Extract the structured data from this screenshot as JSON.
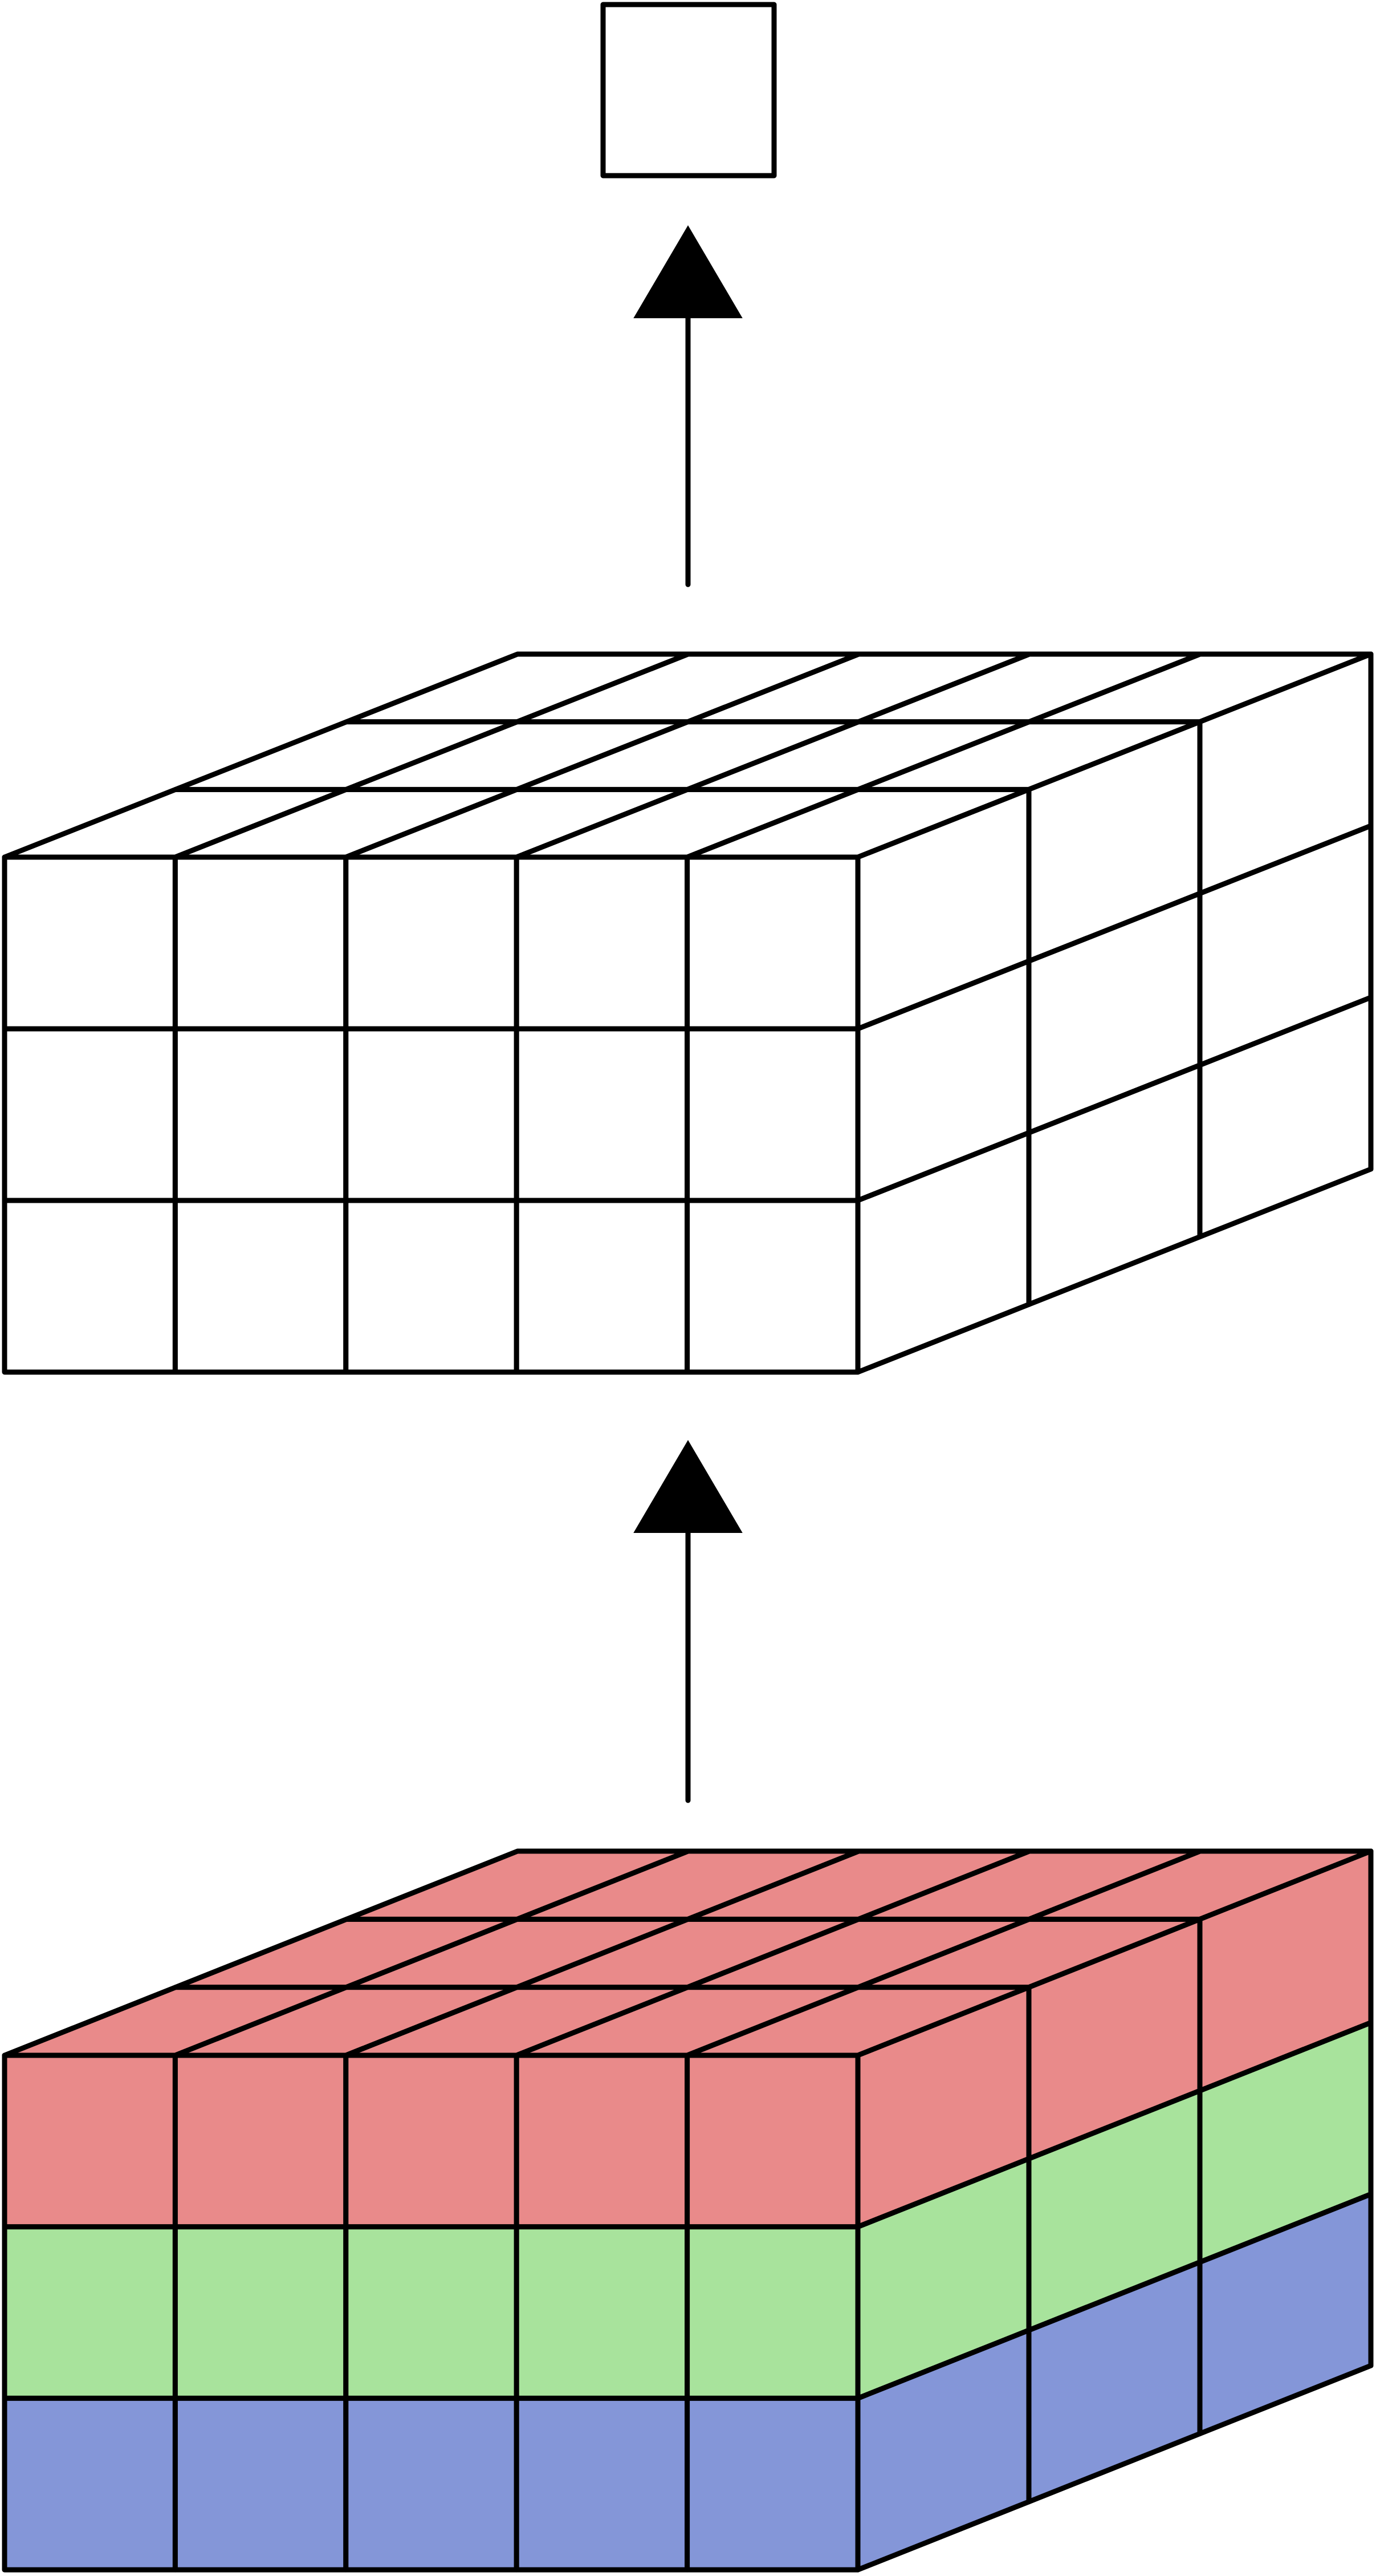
{
  "diagram": {
    "description_free": true,
    "output_unit": {
      "kind": "single-square",
      "fill": "#ffffff",
      "stroke": "#000000"
    },
    "arrows": [
      {
        "name": "arrow-to-output",
        "direction": "up",
        "color": "#000000"
      },
      {
        "name": "arrow-to-middle",
        "direction": "up",
        "color": "#000000"
      }
    ],
    "middle_block": {
      "cols": 5,
      "rows": 3,
      "depth": 3,
      "layer_colors": [
        "#ffffff",
        "#ffffff",
        "#ffffff"
      ]
    },
    "bottom_block": {
      "cols": 5,
      "rows": 3,
      "depth": 3,
      "layer_colors": [
        "#e98a8a",
        "#a8e39c",
        "#8496d8"
      ]
    },
    "edge_color": "#000000",
    "background": "#ffffff"
  }
}
